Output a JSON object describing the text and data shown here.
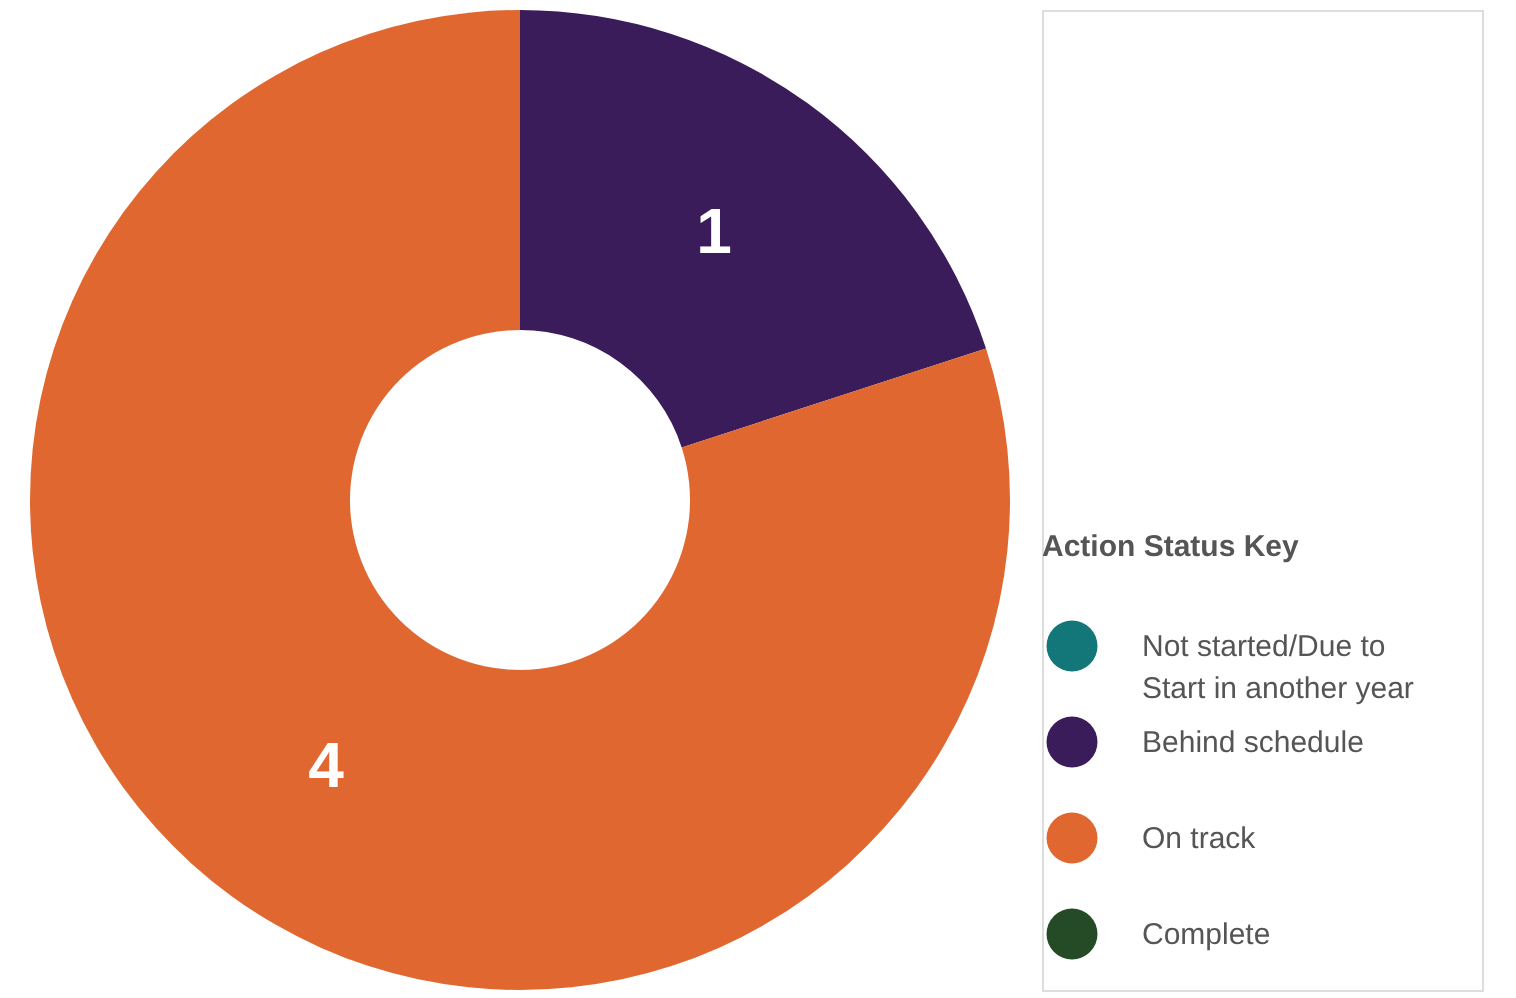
{
  "chart_data": {
    "type": "donut",
    "legend_title": "Action Status Key",
    "legend": "bottom right",
    "data_labels": true,
    "categories": [
      "Not started/Due to Start in another year",
      "Behind schedule",
      "On track",
      "Complete"
    ],
    "values": [
      0,
      1,
      4,
      0
    ],
    "colors": [
      "#13777a",
      "#3b1c5a",
      "#e06830",
      "#244a26"
    ]
  }
}
